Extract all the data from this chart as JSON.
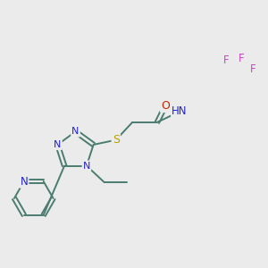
{
  "background_color": "#ebebeb",
  "figsize": [
    3.0,
    3.0
  ],
  "dpi": 100,
  "colors": {
    "bond": "#4a7c6f",
    "N": "#2222cc",
    "S": "#b8a000",
    "O": "#cc2200",
    "F": "#cc44cc"
  }
}
